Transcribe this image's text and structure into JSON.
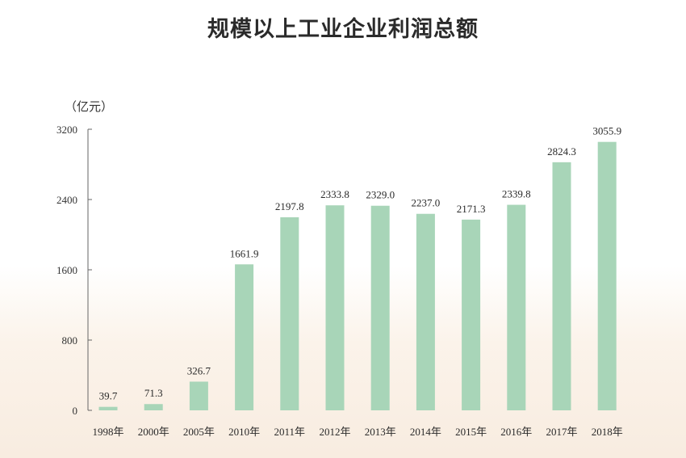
{
  "chart_data": {
    "type": "bar",
    "title": "规模以上工业企业利润总额",
    "ylabel": "（亿元）",
    "xlabel": "",
    "ylim": [
      0,
      3200
    ],
    "yticks": [
      0,
      800,
      1600,
      2400,
      3200
    ],
    "categories": [
      "1998年",
      "2000年",
      "2005年",
      "2010年",
      "2011年",
      "2012年",
      "2013年",
      "2014年",
      "2015年",
      "2016年",
      "2017年",
      "2018年"
    ],
    "values": [
      39.7,
      71.3,
      326.7,
      1661.9,
      2197.8,
      2333.8,
      2329.0,
      2237.0,
      2171.3,
      2339.8,
      2824.3,
      3055.9
    ],
    "value_labels": [
      "39.7",
      "71.3",
      "326.7",
      "1661.9",
      "2197.8",
      "2333.8",
      "2329.0",
      "2237.0",
      "2171.3",
      "2339.8",
      "2824.3",
      "3055.9"
    ],
    "grid": false,
    "bar_color": "#a8d5b8",
    "axis_color": "#666666"
  }
}
